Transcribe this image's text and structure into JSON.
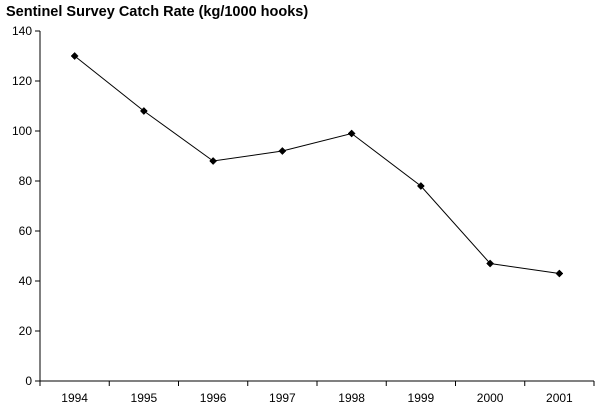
{
  "chart_data": {
    "type": "line",
    "title": "Sentinel Survey Catch Rate (kg/1000 hooks)",
    "xlabel": "",
    "ylabel": "",
    "categories": [
      "1994",
      "1995",
      "1996",
      "1997",
      "1998",
      "1999",
      "2000",
      "2001"
    ],
    "series": [
      {
        "values": [
          130,
          108,
          88,
          92,
          99,
          78,
          47,
          43
        ]
      }
    ],
    "ylim": [
      0,
      140
    ],
    "yticks": [
      0,
      20,
      40,
      60,
      80,
      100,
      120,
      140
    ],
    "grid": false,
    "legend": "none",
    "marker": "diamond",
    "line_color": "#000000"
  }
}
